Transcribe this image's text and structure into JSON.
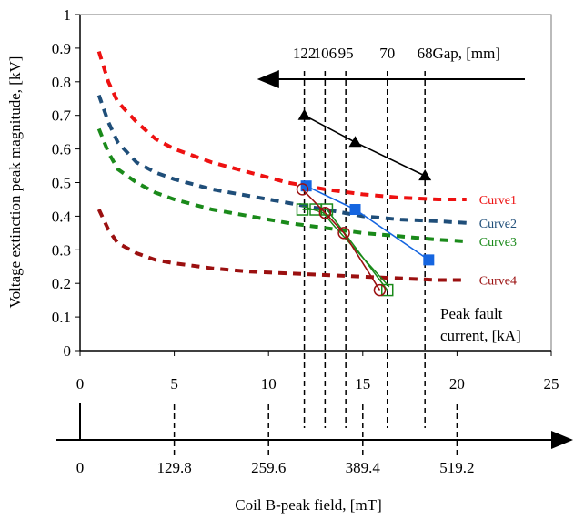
{
  "chart_data": {
    "type": "line",
    "ylabel": "Voltage extinction peak magnitude, [kV]",
    "ylim": [
      0,
      1
    ],
    "y_ticks": [
      "0",
      "0.1",
      "0.2",
      "0.3",
      "0.4",
      "0.5",
      "0.6",
      "0.7",
      "0.8",
      "0.9",
      "1"
    ],
    "xlim": [
      0,
      25
    ],
    "x_ticks": [
      "0",
      "5",
      "10",
      "15",
      "20",
      "25"
    ],
    "x2_ticks": [
      "0",
      "129.8",
      "259.6",
      "389.4",
      "519.2"
    ],
    "x2_tick_positions": [
      0,
      5,
      10,
      15,
      20
    ],
    "x2_label": "Coil B-peak field, [mT]",
    "gap_label": "Gap, [mm]",
    "gap_ticks": [
      "122",
      "106",
      "95",
      "70",
      "68"
    ],
    "gap_tick_x": [
      11.9,
      13.0,
      14.1,
      16.3,
      18.3
    ],
    "gap_lines_x": [
      11.9,
      13.0,
      14.1,
      16.3,
      18.3
    ],
    "lower_dashed_x": [
      5,
      10,
      15,
      20
    ],
    "x_axis_annotation": [
      "Peak fault",
      "current, [kA]"
    ],
    "curves": [
      {
        "name": "Curve1",
        "color": "#ee1111",
        "x": [
          1.0,
          1.5,
          2.0,
          3.0,
          4.0,
          5.0,
          7.0,
          9.0,
          11.0,
          13.0,
          15.0,
          17.0,
          19.0,
          20.5
        ],
        "y": [
          0.89,
          0.8,
          0.74,
          0.68,
          0.63,
          0.6,
          0.56,
          0.53,
          0.5,
          0.48,
          0.465,
          0.455,
          0.45,
          0.45
        ]
      },
      {
        "name": "Curve2",
        "color": "#1f4e79",
        "x": [
          1.0,
          1.5,
          2.0,
          3.0,
          4.0,
          5.0,
          7.0,
          9.0,
          11.0,
          13.0,
          15.0,
          17.0,
          19.0,
          20.5
        ],
        "y": [
          0.76,
          0.68,
          0.62,
          0.56,
          0.53,
          0.51,
          0.48,
          0.46,
          0.44,
          0.42,
          0.4,
          0.39,
          0.385,
          0.38
        ]
      },
      {
        "name": "Curve3",
        "color": "#1a8a1a",
        "x": [
          1.0,
          1.5,
          2.0,
          3.0,
          4.0,
          5.0,
          7.0,
          9.0,
          11.0,
          13.0,
          15.0,
          17.0,
          19.0,
          20.5
        ],
        "y": [
          0.66,
          0.59,
          0.54,
          0.5,
          0.47,
          0.45,
          0.42,
          0.4,
          0.38,
          0.365,
          0.35,
          0.34,
          0.33,
          0.325
        ]
      },
      {
        "name": "Curve4",
        "color": "#9b1010",
        "x": [
          1.0,
          1.5,
          2.0,
          3.0,
          4.0,
          5.0,
          7.0,
          9.0,
          11.0,
          13.0,
          15.0,
          17.0,
          19.0,
          20.5
        ],
        "y": [
          0.42,
          0.36,
          0.32,
          0.29,
          0.27,
          0.26,
          0.245,
          0.235,
          0.23,
          0.225,
          0.22,
          0.215,
          0.21,
          0.21
        ]
      }
    ],
    "measured_series": [
      {
        "marker": "triangle",
        "color": "#000000",
        "x": [
          11.9,
          14.6,
          18.3
        ],
        "y": [
          0.7,
          0.62,
          0.52
        ]
      },
      {
        "marker": "square-filled",
        "color": "#1565e0",
        "x": [
          12.0,
          14.6,
          18.5
        ],
        "y": [
          0.49,
          0.42,
          0.27
        ]
      },
      {
        "marker": "square-open",
        "color": "#1a8a1a",
        "x": [
          11.8,
          12.5,
          13.1,
          16.3
        ],
        "y": [
          0.42,
          0.42,
          0.42,
          0.18
        ]
      },
      {
        "marker": "circle-open",
        "color": "#9b1010",
        "x": [
          11.8,
          13.0,
          14.0,
          15.9
        ],
        "y": [
          0.48,
          0.41,
          0.35,
          0.18
        ]
      }
    ],
    "extra_line": {
      "color": "#1a8a1a",
      "x": [
        11.8,
        12.9,
        13.5,
        16.4
      ],
      "y": [
        0.43,
        0.41,
        0.37,
        0.19
      ]
    }
  }
}
